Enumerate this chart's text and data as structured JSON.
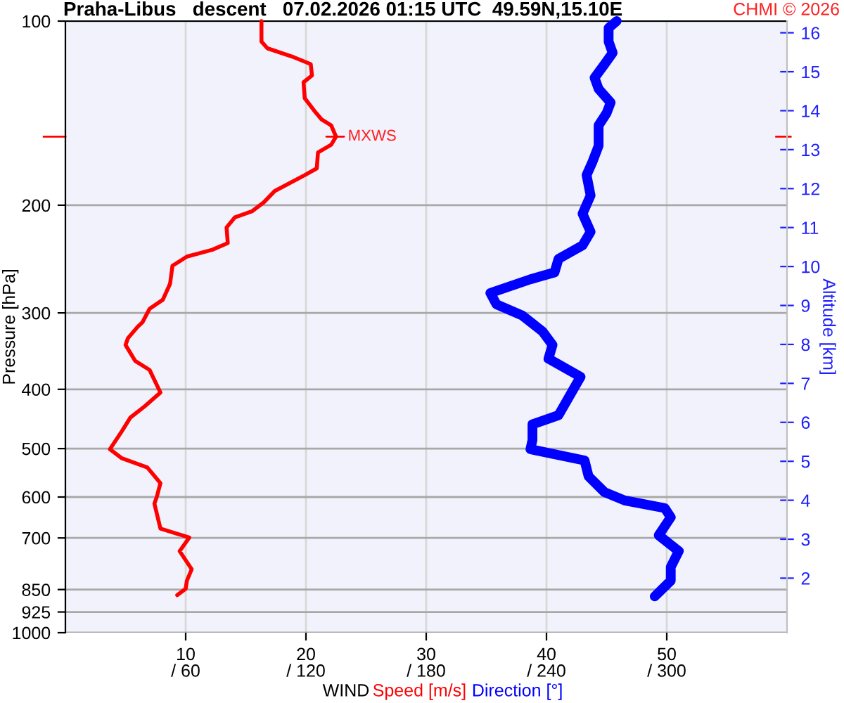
{
  "chart_data": {
    "type": "line",
    "orientation": "horizontal",
    "title": "Praha-Libus   descent   07.02.2026 01:15 UTC  49.59N,15.10E",
    "xlabel": "WIND",
    "ylabel": "Pressure [hPa]",
    "y2label": "Altitude [km]",
    "annotations": [
      "CHMI © 2026",
      {
        "text": "MXWS",
        "x": 22.5,
        "y": 154.5
      }
    ],
    "xlim": [
      0,
      60
    ],
    "xticks": [
      10,
      20,
      30,
      40,
      50
    ],
    "x2lim": [
      0,
      360
    ],
    "x2ticks": [
      {
        "value": 60,
        "label": "/ 60"
      },
      {
        "value": 120,
        "label": "/ 120"
      },
      {
        "value": 180,
        "label": "/ 180"
      },
      {
        "value": 240,
        "label": "/ 240"
      },
      {
        "value": 300,
        "label": "/ 300"
      }
    ],
    "log": "y",
    "ylim": [
      1000,
      100
    ],
    "yticks": [
      100,
      200,
      300,
      400,
      500,
      600,
      700,
      850,
      925,
      1000
    ],
    "y2lim": [
      0.6,
      16.3
    ],
    "y2ticks": [
      2,
      3,
      4,
      5,
      6,
      7,
      8,
      9,
      10,
      11,
      12,
      13,
      14,
      15,
      16
    ],
    "grid": true,
    "legend": false,
    "marker": "none",
    "line_style": "solid",
    "series": [
      {
        "name": "Speed [m/s]",
        "color": "#ff0000",
        "values": [
          16.3,
          16.3,
          16.8,
          19.0,
          20.4,
          20.5,
          19.8,
          19.9,
          20.7,
          21.3,
          22.1,
          22.5,
          22.1,
          21.0,
          20.9,
          19.9,
          17.4,
          16.5,
          15.5,
          14.1,
          13.4,
          13.5,
          12.2,
          10.1,
          8.9,
          8.7,
          8.1,
          7.0,
          6.4,
          6.0,
          5.2,
          5.0,
          5.8,
          7.0,
          7.9,
          6.6,
          5.4,
          4.7,
          3.7,
          4.7,
          6.8,
          6.8,
          7.9,
          7.6,
          7.4,
          7.9,
          10.3,
          9.5,
          10.5,
          10.1,
          10.0,
          9.3
        ],
        "x": [
          100,
          108.0,
          110.8,
          114.6,
          117.6,
          122.7,
          125.9,
          133.7,
          140.2,
          144.8,
          148.1,
          154.5,
          159.3,
          164.0,
          174.1,
          178.6,
          189.6,
          197.8,
          204.7,
          209.3,
          217.4,
          230.6,
          236.6,
          242.7,
          251.2,
          268.9,
          285.5,
          295.4,
          310.9,
          316.2,
          329.9,
          338.5,
          359.4,
          371.9,
          404.9,
          426.3,
          444.9,
          468.2,
          501.2,
          518.7,
          536.6,
          536.6,
          569.5,
          599.5,
          615.0,
          675.6,
          698.9,
          735.6,
          787.5,
          822.2,
          847.6,
          868.0
        ]
      },
      {
        "name": "Direction [°]",
        "color": "#0000ff",
        "axis": "x2",
        "values": [
          275,
          271,
          271,
          273,
          269,
          264,
          266,
          272,
          270,
          266,
          266,
          263,
          260,
          262,
          258,
          262,
          258,
          246,
          244,
          232,
          212,
          215,
          228,
          238,
          243,
          241,
          257,
          246,
          233,
          233,
          232,
          259,
          261,
          269,
          279,
          299,
          302,
          296,
          306,
          302,
          302,
          294
        ],
        "x": [
          100,
          102.6,
          108.0,
          112.7,
          117.6,
          123.8,
          129.1,
          135.9,
          141.4,
          148.1,
          159.9,
          169.7,
          178.6,
          192.8,
          206.5,
          221.1,
          232.6,
          244.8,
          257.6,
          264.3,
          278.3,
          290.4,
          303.1,
          321.6,
          338.5,
          356.4,
          381.6,
          441.0,
          456.4,
          484.3,
          501.2,
          522.9,
          555.2,
          589.3,
          607.8,
          625.5,
          647.4,
          693.0,
          735.6,
          781.2,
          822.2,
          872.3
        ]
      }
    ]
  }
}
